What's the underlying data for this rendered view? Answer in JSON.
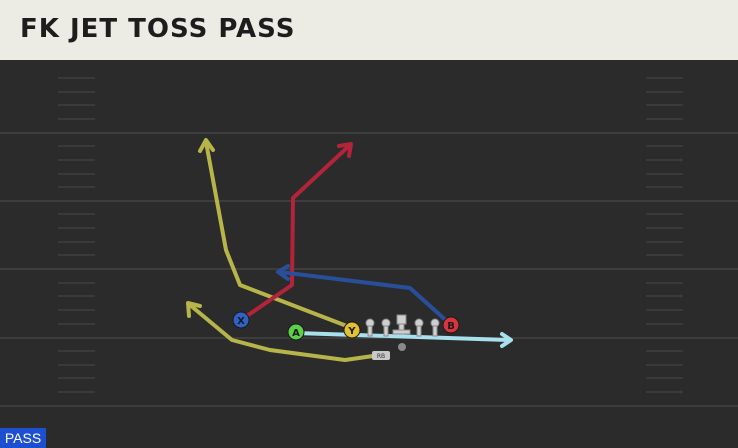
{
  "play": {
    "title": "FK JET TOSS PASS",
    "mode_badge": "PASS"
  },
  "players": {
    "x": "X",
    "a": "A",
    "y": "Y",
    "b": "B",
    "rb": "RB"
  },
  "colors": {
    "header_bg": "#ecebe4",
    "field_bg": "#2b2b2b",
    "route_yellow": "#b7b54a",
    "route_red": "#b3243a",
    "route_blue": "#2a4f9a",
    "route_lightblue": "#a9e0ee",
    "badge_bg": "#1d4fd1"
  }
}
